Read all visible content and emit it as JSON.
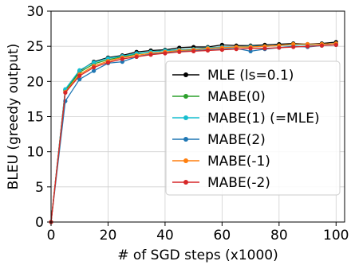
{
  "chart_data": {
    "type": "line",
    "xlabel": "# of SGD steps (x1000)",
    "ylabel": "BLEU (greedy output)",
    "xlim": [
      0,
      103
    ],
    "ylim": [
      0,
      30
    ],
    "xticks": [
      "0",
      "20",
      "40",
      "60",
      "80",
      "100"
    ],
    "yticks": [
      "0",
      "5",
      "10",
      "15",
      "20",
      "25",
      "30"
    ],
    "grid": true,
    "legend_position": "bottom-right",
    "x": [
      0,
      5,
      10,
      15,
      20,
      25,
      30,
      35,
      40,
      45,
      50,
      55,
      60,
      65,
      70,
      75,
      80,
      85,
      90,
      95,
      100
    ],
    "series": [
      {
        "name": "MLE (ls=0.1)",
        "color": "#000000",
        "values": [
          0,
          18.8,
          21.5,
          22.8,
          23.4,
          23.7,
          24.2,
          24.4,
          24.5,
          24.8,
          24.9,
          24.9,
          25.2,
          25.1,
          25.1,
          25.2,
          25.3,
          25.4,
          25.3,
          25.4,
          25.6
        ]
      },
      {
        "name": "MABE(0)",
        "color": "#2ca02c",
        "values": [
          0,
          18.7,
          21.3,
          22.5,
          23.1,
          23.5,
          23.9,
          24.2,
          24.4,
          24.5,
          24.6,
          24.7,
          24.8,
          24.9,
          24.9,
          25.0,
          25.1,
          25.3,
          25.2,
          25.3,
          25.4
        ]
      },
      {
        "name": "MABE(1) (=MLE)",
        "color": "#17becf",
        "values": [
          0,
          18.9,
          21.6,
          22.7,
          23.3,
          23.6,
          24.0,
          24.2,
          24.4,
          24.5,
          24.6,
          24.8,
          24.9,
          24.9,
          25.0,
          25.0,
          25.1,
          25.2,
          25.2,
          25.3,
          25.4
        ]
      },
      {
        "name": "MABE(2)",
        "color": "#1f77b4",
        "values": [
          0,
          17.2,
          20.3,
          21.5,
          22.6,
          22.8,
          23.5,
          23.9,
          24.1,
          24.3,
          24.4,
          24.5,
          24.6,
          24.7,
          24.3,
          24.6,
          24.8,
          25.0,
          24.9,
          25.1,
          25.2
        ]
      },
      {
        "name": "MABE(-1)",
        "color": "#ff7f0e",
        "values": [
          0,
          18.5,
          21.0,
          22.2,
          22.9,
          23.4,
          23.7,
          24.0,
          24.2,
          24.4,
          24.5,
          24.7,
          24.8,
          24.9,
          24.9,
          25.0,
          25.1,
          25.3,
          25.3,
          25.3,
          25.4
        ]
      },
      {
        "name": "MABE(-2)",
        "color": "#d62728",
        "values": [
          0,
          18.4,
          20.8,
          22.0,
          22.7,
          23.2,
          23.5,
          23.8,
          24.0,
          24.2,
          24.3,
          24.4,
          24.5,
          24.6,
          24.7,
          24.7,
          24.8,
          24.9,
          25.0,
          25.1,
          25.2
        ]
      }
    ]
  }
}
